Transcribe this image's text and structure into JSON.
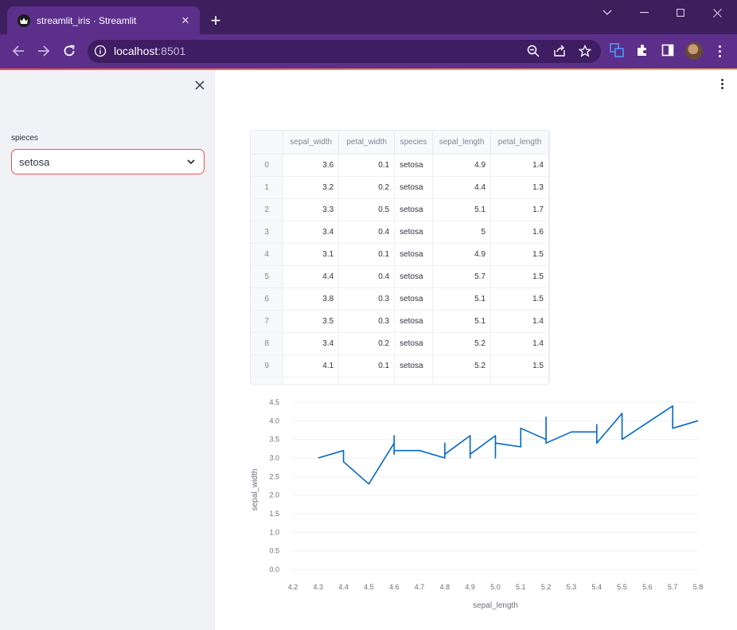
{
  "browser": {
    "tab_title": "streamlit_iris · Streamlit",
    "url_host": "localhost",
    "url_port": ":8501"
  },
  "sidebar": {
    "select_label": "spieces",
    "select_value": "setosa"
  },
  "dataframe": {
    "columns": [
      "",
      "sepal_width",
      "petal_width",
      "species",
      "sepal_length",
      "petal_length"
    ],
    "rows": [
      [
        "0",
        "3.6",
        "0.1",
        "setosa",
        "4.9",
        "1.4"
      ],
      [
        "1",
        "3.2",
        "0.2",
        "setosa",
        "4.4",
        "1.3"
      ],
      [
        "2",
        "3.3",
        "0.5",
        "setosa",
        "5.1",
        "1.7"
      ],
      [
        "3",
        "3.4",
        "0.4",
        "setosa",
        "5",
        "1.6"
      ],
      [
        "4",
        "3.1",
        "0.1",
        "setosa",
        "4.9",
        "1.5"
      ],
      [
        "5",
        "4.4",
        "0.4",
        "setosa",
        "5.7",
        "1.5"
      ],
      [
        "6",
        "3.8",
        "0.3",
        "setosa",
        "5.1",
        "1.5"
      ],
      [
        "7",
        "3.5",
        "0.3",
        "setosa",
        "5.1",
        "1.4"
      ],
      [
        "8",
        "3.4",
        "0.2",
        "setosa",
        "5.2",
        "1.4"
      ],
      [
        "9",
        "4.1",
        "0.1",
        "setosa",
        "5.2",
        "1.5"
      ],
      [
        "",
        "",
        "",
        "",
        "",
        ""
      ]
    ]
  },
  "chart_data": {
    "type": "line",
    "xlabel": "sepal_length",
    "ylabel": "sepal_width",
    "xlim": [
      4.2,
      5.8
    ],
    "ylim": [
      0,
      4.5
    ],
    "x_ticks": [
      "4.2",
      "4.3",
      "4.4",
      "4.5",
      "4.6",
      "4.7",
      "4.8",
      "4.9",
      "5.0",
      "5.1",
      "5.2",
      "5.3",
      "5.4",
      "5.5",
      "5.6",
      "5.7",
      "5.8"
    ],
    "y_ticks": [
      "0.0",
      "0.5",
      "1.0",
      "1.5",
      "2.0",
      "2.5",
      "3.0",
      "3.5",
      "4.0",
      "4.5"
    ],
    "color": "#0068c9",
    "grid": true,
    "x": [
      4.3,
      4.4,
      4.4,
      4.5,
      4.6,
      4.6,
      4.6,
      4.6,
      4.6,
      4.7,
      4.8,
      4.8,
      4.8,
      4.9,
      4.9,
      4.9,
      5.0,
      5.0,
      5.0,
      5.0,
      5.0,
      5.1,
      5.1,
      5.2,
      5.2,
      5.2,
      5.3,
      5.4,
      5.4,
      5.4,
      5.5,
      5.5,
      5.7,
      5.7,
      5.8
    ],
    "y": [
      3.0,
      3.2,
      2.9,
      2.3,
      3.4,
      3.6,
      3.1,
      3.4,
      3.2,
      3.2,
      3.0,
      3.4,
      3.1,
      3.6,
      3.0,
      3.1,
      3.6,
      3.0,
      3.5,
      3.3,
      3.4,
      3.3,
      3.8,
      3.5,
      4.1,
      3.4,
      3.7,
      3.7,
      3.9,
      3.4,
      4.2,
      3.5,
      4.4,
      3.8,
      4.0
    ]
  }
}
